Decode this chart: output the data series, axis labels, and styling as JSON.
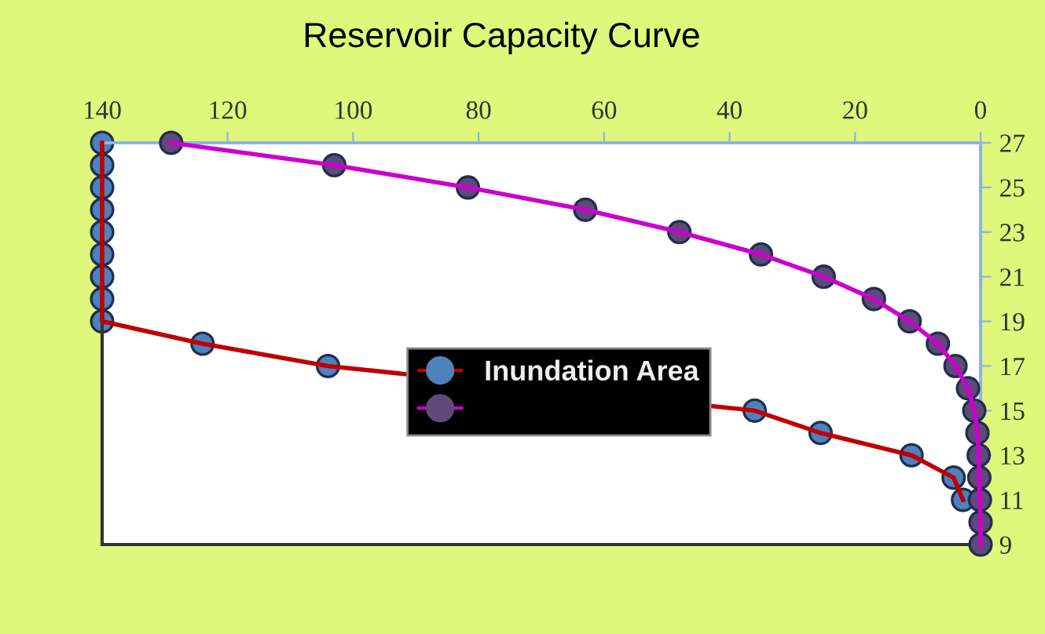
{
  "chart_data": {
    "type": "line",
    "title": "Reservoir Capacity Curve",
    "xlim": [
      140,
      0
    ],
    "xticks": [
      140,
      120,
      100,
      80,
      60,
      40,
      20,
      0
    ],
    "ylim": [
      9,
      27
    ],
    "yticks": [
      9,
      11,
      13,
      15,
      17,
      19,
      21,
      23,
      25,
      27
    ],
    "marker": "circle",
    "line_style": "solid",
    "grid": false,
    "legend": "center",
    "series": [
      {
        "name": "Inundation Area",
        "color": "#c00000",
        "colors": [
          "#4f81bd",
          "#4f81bd",
          "#4f81bd",
          "#4f81bd",
          "#4f81bd",
          "#4f81bd",
          "#4f81bd",
          "#4f81bd",
          "#4f81bd",
          "#4f81bd",
          "#4f81bd",
          "#4f81bd",
          "#4f81bd",
          "#4f81bd",
          "#4f81bd",
          "#4f81bd",
          "#4f81bd",
          "#4f81bd",
          "#4f81bd"
        ],
        "x": [
          140,
          140,
          140,
          140,
          140,
          140,
          140,
          140,
          140,
          124,
          104,
          null,
          36,
          25.5,
          11,
          4.3,
          2.8,
          null,
          null
        ],
        "values": [
          27,
          26,
          25,
          24,
          23,
          22,
          21,
          20,
          19,
          18,
          17,
          null,
          15,
          14,
          13,
          12,
          11,
          null,
          null
        ]
      },
      {
        "color": "#cc00cc",
        "colors": [
          "#5f497a",
          "#5f497a",
          "#5f497a",
          "#5f497a",
          "#5f497a",
          "#5f497a",
          "#5f497a",
          "#5f497a",
          "#5f497a",
          "#5f497a",
          "#5f497a",
          "#5f497a",
          "#5f497a",
          "#5f497a",
          "#5f497a",
          "#5f497a",
          "#5f497a",
          "#5f497a",
          "#5f497a"
        ],
        "x": [
          129,
          103,
          81.7,
          63,
          48,
          35,
          25,
          17,
          11.3,
          6.8,
          4,
          2,
          1,
          0.5,
          0.3,
          0.2,
          0.1,
          0,
          0
        ],
        "values": [
          27,
          26,
          25,
          24,
          23,
          22,
          21,
          20,
          19,
          18,
          17,
          16,
          15,
          14,
          13,
          12,
          11,
          10,
          9
        ]
      }
    ]
  }
}
